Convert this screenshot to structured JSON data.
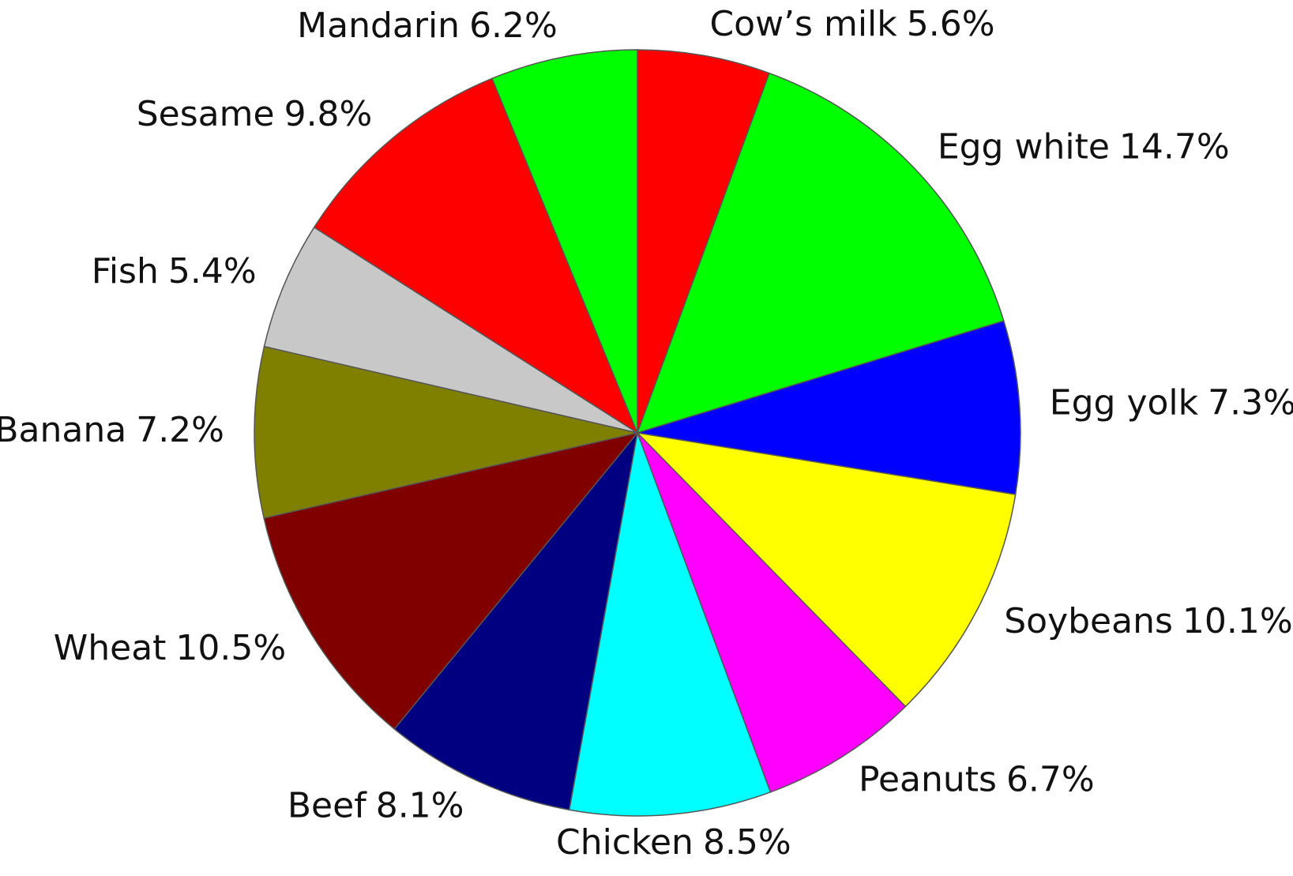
{
  "chart_data": {
    "type": "pie",
    "categories": [
      "Cow’s milk",
      "Egg white",
      "Egg yolk",
      "Soybeans",
      "Peanuts",
      "Chicken",
      "Beef",
      "Wheat",
      "Banana",
      "Fish",
      "Sesame",
      "Mandarin"
    ],
    "values": [
      5.6,
      14.7,
      7.3,
      10.1,
      6.7,
      8.5,
      8.1,
      10.5,
      7.2,
      5.4,
      9.8,
      6.2
    ],
    "value_labels": [
      "5.6%",
      "14.7%",
      "7.3%",
      "10.1%",
      "6.7%",
      "8.5%",
      "8.1%",
      "10.5%",
      "7.2%",
      "5.4%",
      "9.8%",
      "6.2%"
    ],
    "colors": [
      "#ff0000",
      "#00ff00",
      "#0000ff",
      "#ffff00",
      "#ff00ff",
      "#00ffff",
      "#000080",
      "#800000",
      "#808000",
      "#c8c8c8",
      "#ff0000",
      "#00ff00"
    ]
  }
}
